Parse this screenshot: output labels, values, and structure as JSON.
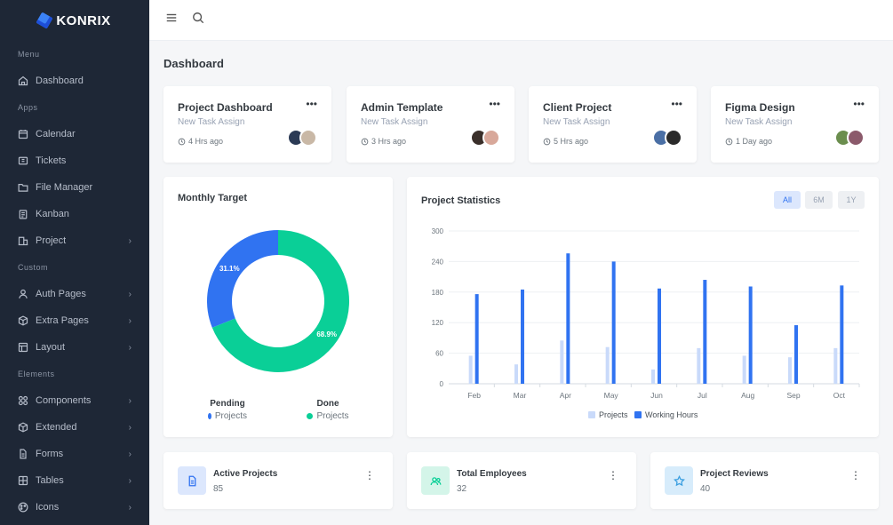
{
  "brand": {
    "name": "KONRIX"
  },
  "sidebar": {
    "sections": [
      {
        "title": "Menu",
        "items": [
          {
            "label": "Dashboard",
            "icon": "home-icon",
            "chevron": false
          }
        ]
      },
      {
        "title": "Apps",
        "items": [
          {
            "label": "Calendar",
            "icon": "calendar-icon",
            "chevron": false
          },
          {
            "label": "Tickets",
            "icon": "ticket-icon",
            "chevron": false
          },
          {
            "label": "File Manager",
            "icon": "folder-icon",
            "chevron": false
          },
          {
            "label": "Kanban",
            "icon": "clipboard-icon",
            "chevron": false
          },
          {
            "label": "Project",
            "icon": "building-icon",
            "chevron": true
          }
        ]
      },
      {
        "title": "Custom",
        "items": [
          {
            "label": "Auth Pages",
            "icon": "user-icon",
            "chevron": true
          },
          {
            "label": "Extra Pages",
            "icon": "box-icon",
            "chevron": true
          },
          {
            "label": "Layout",
            "icon": "layout-icon",
            "chevron": true
          }
        ]
      },
      {
        "title": "Elements",
        "items": [
          {
            "label": "Components",
            "icon": "grid-icon",
            "chevron": true
          },
          {
            "label": "Extended",
            "icon": "cube-icon",
            "chevron": true
          },
          {
            "label": "Forms",
            "icon": "file-icon",
            "chevron": true
          },
          {
            "label": "Tables",
            "icon": "table-icon",
            "chevron": true
          },
          {
            "label": "Icons",
            "icon": "palette-icon",
            "chevron": true
          }
        ]
      }
    ],
    "chevron_glyph": "›"
  },
  "page": {
    "title": "Dashboard"
  },
  "project_cards": [
    {
      "title": "Project Dashboard",
      "subtitle": "New Task Assign",
      "time": "4 Hrs ago",
      "avatar_colors": [
        "#2b3a55",
        "#c9b8a6"
      ]
    },
    {
      "title": "Admin Template",
      "subtitle": "New Task Assign",
      "time": "3 Hrs ago",
      "avatar_colors": [
        "#3a2f2a",
        "#d8a89a"
      ]
    },
    {
      "title": "Client Project",
      "subtitle": "New Task Assign",
      "time": "5 Hrs ago",
      "avatar_colors": [
        "#4a6fa5",
        "#2a2a2a"
      ]
    },
    {
      "title": "Figma Design",
      "subtitle": "New Task Assign",
      "time": "1 Day ago",
      "avatar_colors": [
        "#6b8e4e",
        "#8b5a6b"
      ]
    }
  ],
  "monthly_target": {
    "title": "Monthly Target",
    "legend": [
      {
        "title": "Pending",
        "label": "Projects",
        "color": "#3073f1"
      },
      {
        "title": "Done",
        "label": "Projects",
        "color": "#0acf97"
      }
    ]
  },
  "project_statistics": {
    "title": "Project Statistics",
    "range_buttons": [
      {
        "label": "All",
        "active": true
      },
      {
        "label": "6M",
        "active": false
      },
      {
        "label": "1Y",
        "active": false
      }
    ]
  },
  "chart_data": [
    {
      "type": "pie",
      "variant": "donut",
      "title": "Monthly Target",
      "categories": [
        "Pending",
        "Done"
      ],
      "values": [
        31.1,
        68.9
      ],
      "data_labels": [
        "31.1%",
        "68.9%"
      ],
      "colors": [
        "#3073f1",
        "#0acf97"
      ]
    },
    {
      "type": "bar",
      "title": "Project Statistics",
      "categories": [
        "Feb",
        "Mar",
        "Apr",
        "May",
        "Jun",
        "Jul",
        "Aug",
        "Sep",
        "Oct"
      ],
      "series": [
        {
          "name": "Projects",
          "values": [
            55,
            38,
            85,
            72,
            28,
            70,
            55,
            52,
            70
          ],
          "color": "#c9dafa"
        },
        {
          "name": "Working Hours",
          "values": [
            176,
            185,
            256,
            240,
            187,
            204,
            191,
            115,
            193
          ],
          "color": "#3073f1"
        }
      ],
      "yticks": [
        "300",
        "240",
        "180",
        "120",
        "60",
        "0"
      ],
      "ylim": [
        0,
        300
      ],
      "grid": true,
      "legend_position": "bottom"
    }
  ],
  "stats": [
    {
      "label": "Active Projects",
      "value": "85",
      "icon": "document-icon",
      "bg": "#dce7fd",
      "fg": "#3073f1"
    },
    {
      "label": "Total Employees",
      "value": "32",
      "icon": "users-icon",
      "bg": "#d4f5e9",
      "fg": "#0acf97"
    },
    {
      "label": "Project Reviews",
      "value": "40",
      "icon": "star-icon",
      "bg": "#d7ecfb",
      "fg": "#3b9fe0"
    }
  ],
  "ui": {
    "more_glyph": "•••",
    "kebab_glyph": "⋮"
  }
}
